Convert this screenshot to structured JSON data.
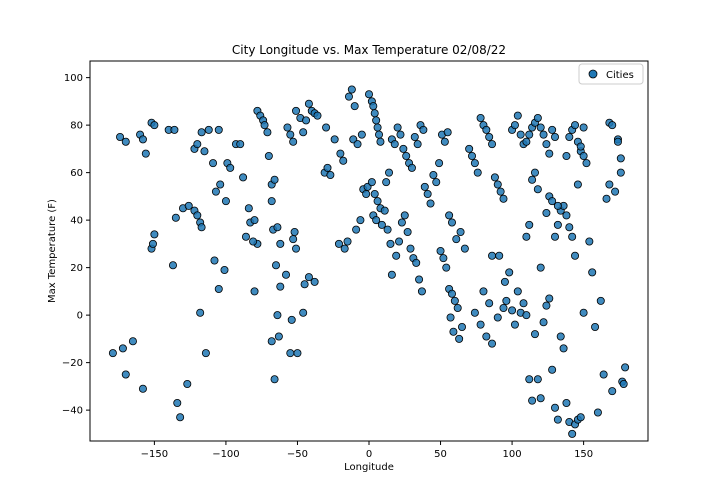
{
  "chart_data": {
    "type": "scatter",
    "title": "City Longitude vs. Max Temperature 02/08/22",
    "xlabel": "Longitude",
    "ylabel": "Max Temperature (F)",
    "xlim": [
      -195,
      195
    ],
    "ylim": [
      -53,
      107
    ],
    "xticks": [
      -150,
      -100,
      -50,
      0,
      50,
      100,
      150
    ],
    "yticks": [
      -40,
      -20,
      0,
      20,
      40,
      60,
      80,
      100
    ],
    "grid": false,
    "legend_position": "upper-right",
    "series": [
      {
        "name": "Cities",
        "color": "#1f77b4",
        "edgecolor": "#000000",
        "points": [
          [
            -179,
            -16
          ],
          [
            -172,
            -14
          ],
          [
            -170,
            -25
          ],
          [
            -165,
            -11
          ],
          [
            -158,
            -31
          ],
          [
            -174,
            75
          ],
          [
            -170,
            73
          ],
          [
            -160,
            76
          ],
          [
            -158,
            74
          ],
          [
            -156,
            68
          ],
          [
            -152,
            81
          ],
          [
            -150,
            80
          ],
          [
            -152,
            28
          ],
          [
            -150,
            34
          ],
          [
            -151,
            30
          ],
          [
            -140,
            78
          ],
          [
            -136,
            78
          ],
          [
            -137,
            21
          ],
          [
            -134,
            -37
          ],
          [
            -132,
            -43
          ],
          [
            -127,
            -29
          ],
          [
            -135,
            41
          ],
          [
            -130,
            45
          ],
          [
            -126,
            46
          ],
          [
            -122,
            44
          ],
          [
            -120,
            42
          ],
          [
            -118,
            39
          ],
          [
            -117,
            37
          ],
          [
            -118,
            1
          ],
          [
            -114,
            -16
          ],
          [
            -122,
            70
          ],
          [
            -120,
            72
          ],
          [
            -117,
            77
          ],
          [
            -115,
            69
          ],
          [
            -112,
            78
          ],
          [
            -109,
            64
          ],
          [
            -105,
            78
          ],
          [
            -107,
            52
          ],
          [
            -104,
            55
          ],
          [
            -100,
            48
          ],
          [
            -99,
            64
          ],
          [
            -97,
            62
          ],
          [
            -108,
            23
          ],
          [
            -105,
            11
          ],
          [
            -101,
            19
          ],
          [
            -93,
            72
          ],
          [
            -90,
            72
          ],
          [
            -88,
            58
          ],
          [
            -86,
            33
          ],
          [
            -84,
            45
          ],
          [
            -83,
            39
          ],
          [
            -80,
            40
          ],
          [
            -78,
            30
          ],
          [
            -81,
            31
          ],
          [
            -80,
            10
          ],
          [
            -78,
            86
          ],
          [
            -76,
            84
          ],
          [
            -74,
            82
          ],
          [
            -73,
            80
          ],
          [
            -71,
            77
          ],
          [
            -70,
            67
          ],
          [
            -68,
            55
          ],
          [
            -66,
            57
          ],
          [
            -68,
            48
          ],
          [
            -67,
            36
          ],
          [
            -64,
            37
          ],
          [
            -62,
            30
          ],
          [
            -65,
            21
          ],
          [
            -62,
            12
          ],
          [
            -64,
            0
          ],
          [
            -68,
            -11
          ],
          [
            -66,
            -27
          ],
          [
            -63,
            -9
          ],
          [
            -58,
            17
          ],
          [
            -55,
            -16
          ],
          [
            -53,
            32
          ],
          [
            -51,
            28
          ],
          [
            -52,
            35
          ],
          [
            -57,
            79
          ],
          [
            -55,
            76
          ],
          [
            -53,
            73
          ],
          [
            -51,
            86
          ],
          [
            -48,
            83
          ],
          [
            -46,
            77
          ],
          [
            -44,
            82
          ],
          [
            -42,
            89
          ],
          [
            -40,
            86
          ],
          [
            -38,
            85
          ],
          [
            -36,
            84
          ],
          [
            -42,
            16
          ],
          [
            -38,
            14
          ],
          [
            -45,
            13
          ],
          [
            -46,
            1
          ],
          [
            -54,
            -2
          ],
          [
            -50,
            -16
          ],
          [
            -31,
            60
          ],
          [
            -29,
            62
          ],
          [
            -27,
            59
          ],
          [
            -30,
            79
          ],
          [
            -24,
            74
          ],
          [
            -20,
            68
          ],
          [
            -18,
            65
          ],
          [
            -15,
            31
          ],
          [
            -17,
            28
          ],
          [
            -21,
            30
          ],
          [
            -14,
            92
          ],
          [
            -12,
            95
          ],
          [
            -10,
            88
          ],
          [
            -11,
            74
          ],
          [
            -8,
            72
          ],
          [
            -5,
            76
          ],
          [
            -4,
            53
          ],
          [
            -2,
            51
          ],
          [
            -1,
            54
          ],
          [
            -6,
            40
          ],
          [
            -9,
            36
          ],
          [
            0,
            93
          ],
          [
            2,
            90
          ],
          [
            3,
            88
          ],
          [
            4,
            85
          ],
          [
            5,
            82
          ],
          [
            6,
            79
          ],
          [
            7,
            76
          ],
          [
            8,
            73
          ],
          [
            2,
            56
          ],
          [
            4,
            51
          ],
          [
            6,
            48
          ],
          [
            8,
            45
          ],
          [
            3,
            42
          ],
          [
            5,
            40
          ],
          [
            9,
            38
          ],
          [
            11,
            44
          ],
          [
            13,
            36
          ],
          [
            15,
            30
          ],
          [
            12,
            56
          ],
          [
            14,
            60
          ],
          [
            16,
            74
          ],
          [
            18,
            72
          ],
          [
            20,
            79
          ],
          [
            22,
            76
          ],
          [
            24,
            70
          ],
          [
            26,
            67
          ],
          [
            28,
            64
          ],
          [
            30,
            62
          ],
          [
            32,
            75
          ],
          [
            34,
            72
          ],
          [
            36,
            80
          ],
          [
            38,
            78
          ],
          [
            16,
            17
          ],
          [
            19,
            25
          ],
          [
            21,
            31
          ],
          [
            23,
            39
          ],
          [
            25,
            42
          ],
          [
            27,
            35
          ],
          [
            29,
            28
          ],
          [
            31,
            24
          ],
          [
            33,
            22
          ],
          [
            35,
            15
          ],
          [
            37,
            10
          ],
          [
            39,
            54
          ],
          [
            41,
            51
          ],
          [
            43,
            47
          ],
          [
            45,
            59
          ],
          [
            47,
            56
          ],
          [
            49,
            64
          ],
          [
            51,
            76
          ],
          [
            53,
            73
          ],
          [
            55,
            77
          ],
          [
            50,
            27
          ],
          [
            52,
            24
          ],
          [
            54,
            20
          ],
          [
            56,
            11
          ],
          [
            58,
            9
          ],
          [
            60,
            6
          ],
          [
            62,
            3
          ],
          [
            57,
            -1
          ],
          [
            59,
            -7
          ],
          [
            63,
            -10
          ],
          [
            65,
            -5
          ],
          [
            56,
            42
          ],
          [
            58,
            39
          ],
          [
            61,
            32
          ],
          [
            64,
            35
          ],
          [
            67,
            28
          ],
          [
            70,
            70
          ],
          [
            72,
            67
          ],
          [
            74,
            64
          ],
          [
            76,
            60
          ],
          [
            78,
            83
          ],
          [
            80,
            80
          ],
          [
            82,
            78
          ],
          [
            84,
            75
          ],
          [
            86,
            72
          ],
          [
            88,
            58
          ],
          [
            90,
            55
          ],
          [
            92,
            52
          ],
          [
            94,
            49
          ],
          [
            74,
            1
          ],
          [
            78,
            -4
          ],
          [
            82,
            -9
          ],
          [
            86,
            -12
          ],
          [
            90,
            -1
          ],
          [
            94,
            3
          ],
          [
            96,
            6
          ],
          [
            98,
            18
          ],
          [
            86,
            25
          ],
          [
            91,
            25
          ],
          [
            95,
            14
          ],
          [
            80,
            10
          ],
          [
            84,
            5
          ],
          [
            100,
            78
          ],
          [
            102,
            80
          ],
          [
            104,
            84
          ],
          [
            106,
            76
          ],
          [
            108,
            72
          ],
          [
            110,
            73
          ],
          [
            112,
            76
          ],
          [
            114,
            79
          ],
          [
            116,
            81
          ],
          [
            118,
            83
          ],
          [
            120,
            79
          ],
          [
            122,
            76
          ],
          [
            124,
            72
          ],
          [
            126,
            68
          ],
          [
            128,
            78
          ],
          [
            130,
            75
          ],
          [
            100,
            2
          ],
          [
            102,
            -4
          ],
          [
            104,
            10
          ],
          [
            106,
            1
          ],
          [
            108,
            5
          ],
          [
            110,
            0
          ],
          [
            112,
            -27
          ],
          [
            114,
            -36
          ],
          [
            116,
            -8
          ],
          [
            118,
            -27
          ],
          [
            120,
            -35
          ],
          [
            122,
            -3
          ],
          [
            124,
            4
          ],
          [
            126,
            7
          ],
          [
            128,
            -23
          ],
          [
            130,
            -39
          ],
          [
            132,
            -44
          ],
          [
            134,
            -9
          ],
          [
            136,
            -14
          ],
          [
            138,
            -37
          ],
          [
            140,
            -45
          ],
          [
            142,
            -50
          ],
          [
            144,
            -46
          ],
          [
            146,
            -44
          ],
          [
            148,
            -43
          ],
          [
            150,
            1
          ],
          [
            110,
            33
          ],
          [
            112,
            38
          ],
          [
            114,
            57
          ],
          [
            116,
            60
          ],
          [
            118,
            53
          ],
          [
            120,
            20
          ],
          [
            124,
            43
          ],
          [
            126,
            50
          ],
          [
            128,
            48
          ],
          [
            130,
            33
          ],
          [
            132,
            38
          ],
          [
            134,
            44
          ],
          [
            136,
            46
          ],
          [
            138,
            42
          ],
          [
            140,
            37
          ],
          [
            142,
            33
          ],
          [
            144,
            25
          ],
          [
            146,
            55
          ],
          [
            148,
            69
          ],
          [
            150,
            67
          ],
          [
            152,
            64
          ],
          [
            138,
            67
          ],
          [
            140,
            75
          ],
          [
            142,
            78
          ],
          [
            144,
            80
          ],
          [
            146,
            73
          ],
          [
            148,
            71
          ],
          [
            150,
            79
          ],
          [
            154,
            31
          ],
          [
            156,
            18
          ],
          [
            158,
            -5
          ],
          [
            160,
            -41
          ],
          [
            162,
            6
          ],
          [
            164,
            -25
          ],
          [
            166,
            49
          ],
          [
            168,
            55
          ],
          [
            170,
            -32
          ],
          [
            172,
            52
          ],
          [
            174,
            74
          ],
          [
            176,
            60
          ],
          [
            177,
            -28
          ],
          [
            178,
            -29
          ],
          [
            179,
            -22
          ],
          [
            168,
            81
          ],
          [
            170,
            80
          ],
          [
            176,
            66
          ],
          [
            174,
            73
          ],
          [
            132,
            46
          ]
        ]
      }
    ]
  }
}
